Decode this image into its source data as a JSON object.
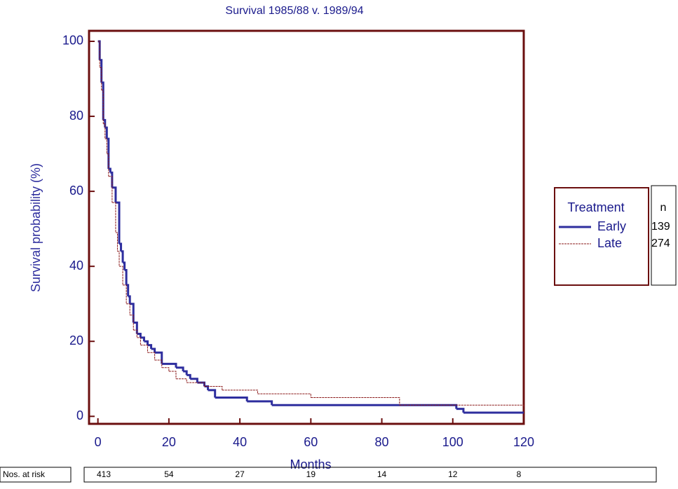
{
  "chart_data": {
    "type": "step",
    "title": "Survival 1985/88 v. 1989/94",
    "x_label": "Months",
    "y_label": "Survival probability (%)",
    "xlim": [
      -2.5,
      120
    ],
    "ylim": [
      -2,
      102.8
    ],
    "xticks": [
      0,
      20,
      40,
      60,
      80,
      100,
      120
    ],
    "yticks": [
      0,
      20,
      40,
      60,
      80,
      100
    ],
    "legend": {
      "title": "Treatment",
      "n_header": "n",
      "position": "right"
    },
    "series": [
      {
        "name": "Early",
        "color": "#2e2e9e",
        "n": 139,
        "x": [
          0,
          0.5,
          1,
          1.5,
          2,
          2.5,
          3,
          3.5,
          4,
          5,
          6,
          6.5,
          7,
          7.5,
          8,
          8.5,
          9,
          10,
          11,
          12,
          13,
          14,
          15,
          16,
          18,
          22,
          24,
          25,
          26,
          28,
          30,
          31,
          33,
          42,
          49,
          101,
          103,
          120
        ],
        "values": [
          100,
          95,
          89,
          79,
          77,
          74,
          66,
          65,
          61,
          57,
          46,
          44,
          41,
          39,
          35,
          32,
          30,
          25,
          22,
          21,
          20,
          19,
          18,
          17,
          14,
          13,
          12,
          11,
          10,
          9,
          8,
          7,
          5,
          4,
          3,
          2,
          1,
          1
        ]
      },
      {
        "name": "Late",
        "color": "#8b1a1a",
        "n": 274,
        "x": [
          0,
          0.5,
          1,
          1.5,
          2,
          2.5,
          3,
          4,
          5,
          5.5,
          6,
          7,
          8,
          9,
          10,
          11,
          12,
          14,
          16,
          18,
          20,
          22,
          25,
          30,
          35,
          45,
          60,
          85,
          100,
          120
        ],
        "values": [
          100,
          93,
          87,
          78,
          74,
          70,
          64,
          57,
          49,
          44,
          40,
          35,
          30,
          27,
          23,
          21,
          19,
          17,
          15,
          13,
          12,
          10,
          9,
          8,
          7,
          6,
          5,
          3,
          3,
          2.5
        ]
      }
    ],
    "at_risk": {
      "label": "Nos. at risk",
      "values": [
        413,
        54,
        27,
        19,
        14,
        12,
        8
      ]
    }
  }
}
